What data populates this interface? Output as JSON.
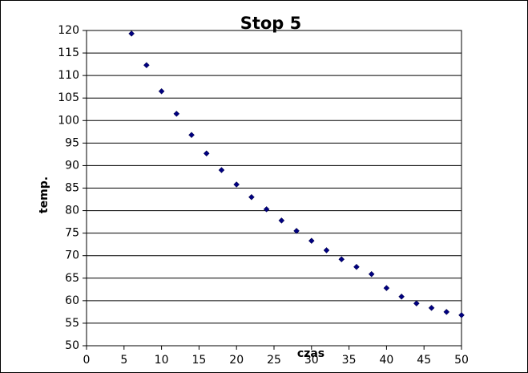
{
  "chart_data": {
    "type": "scatter",
    "title": "Stop 5",
    "x_label": "czas",
    "y_label": "temp.",
    "series": [
      {
        "name": null,
        "color": "#000080",
        "x": [
          6,
          8,
          10,
          12,
          14,
          16,
          18,
          20,
          22,
          24,
          26,
          28,
          30,
          32,
          34,
          36,
          38,
          40,
          42,
          44,
          46,
          48,
          50
        ],
        "values": [
          119.3,
          112.3,
          106.5,
          101.5,
          96.8,
          92.7,
          89.0,
          85.8,
          83.0,
          80.3,
          77.8,
          75.5,
          73.3,
          71.2,
          69.2,
          67.5,
          65.9,
          62.8,
          60.9,
          59.4,
          58.4,
          57.5,
          56.8
        ]
      }
    ],
    "xlim": [
      0,
      50
    ],
    "xticks": [
      0,
      5,
      10,
      15,
      20,
      25,
      30,
      35,
      40,
      45,
      50
    ],
    "ylim": [
      50,
      120
    ],
    "yticks": [
      50,
      55,
      60,
      65,
      70,
      75,
      80,
      85,
      90,
      95,
      100,
      105,
      110,
      115,
      120
    ],
    "grid": true
  }
}
